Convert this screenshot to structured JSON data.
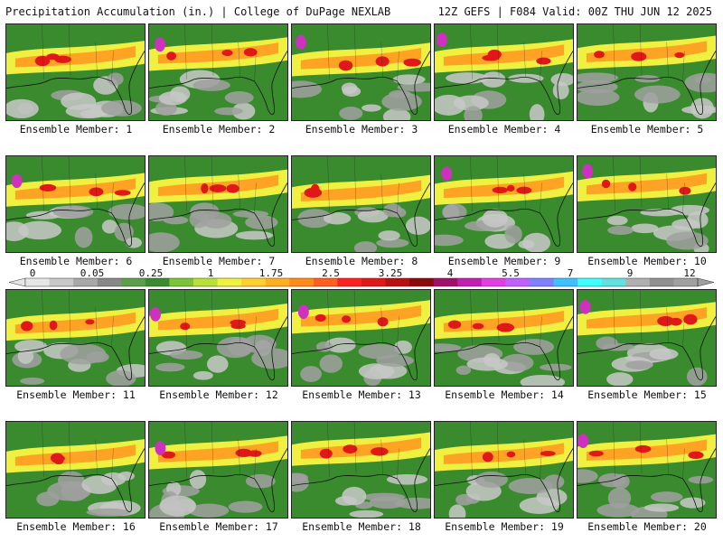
{
  "header": {
    "title": "Precipitation Accumulation (in.) | College of DuPage NEXLAB",
    "run_info": "12Z GEFS | F084 Valid: 00Z THU JUN 12 2025"
  },
  "members": [
    {
      "label": "Ensemble Member: 1"
    },
    {
      "label": "Ensemble Member: 2"
    },
    {
      "label": "Ensemble Member: 3"
    },
    {
      "label": "Ensemble Member: 4"
    },
    {
      "label": "Ensemble Member: 5"
    },
    {
      "label": "Ensemble Member: 6"
    },
    {
      "label": "Ensemble Member: 7"
    },
    {
      "label": "Ensemble Member: 8"
    },
    {
      "label": "Ensemble Member: 9"
    },
    {
      "label": "Ensemble Member: 10"
    },
    {
      "label": "Ensemble Member: 11"
    },
    {
      "label": "Ensemble Member: 12"
    },
    {
      "label": "Ensemble Member: 13"
    },
    {
      "label": "Ensemble Member: 14"
    },
    {
      "label": "Ensemble Member: 15"
    },
    {
      "label": "Ensemble Member: 16"
    },
    {
      "label": "Ensemble Member: 17"
    },
    {
      "label": "Ensemble Member: 18"
    },
    {
      "label": "Ensemble Member: 19"
    },
    {
      "label": "Ensemble Member: 20"
    }
  ],
  "colorbar": {
    "labels": [
      "0",
      "0.05",
      "0.25",
      "1",
      "1.75",
      "2.5",
      "3.25",
      "4",
      "5.5",
      "7",
      "9",
      "12"
    ],
    "colors": [
      "#e6e6e6",
      "#c8c8c8",
      "#a8a8a8",
      "#888888",
      "#5c9e4a",
      "#3a8a2e",
      "#7cc43a",
      "#b8e03a",
      "#f0f040",
      "#ffd030",
      "#ffb020",
      "#ff8c1a",
      "#ff6020",
      "#ff2020",
      "#e01818",
      "#b81010",
      "#8a0a0a",
      "#a0106a",
      "#c020b0",
      "#e040e0",
      "#c060ff",
      "#8080ff",
      "#40c0ff",
      "#40ffff",
      "#60e0e0",
      "#b0b0b0",
      "#909090",
      "#a0a0a0"
    ]
  },
  "palette": {
    "dry": "#a0a0a0",
    "light": "#3a8a2e",
    "yellow": "#f0f040",
    "orange": "#ff9a20",
    "red": "#e01818",
    "magenta": "#d030c0"
  }
}
